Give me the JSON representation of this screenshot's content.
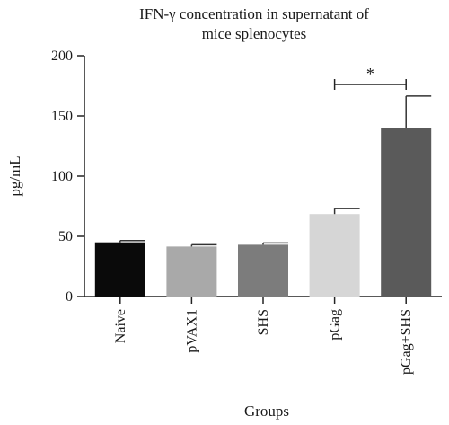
{
  "chart_data": {
    "type": "bar",
    "title": "IFN-γ concentration in supernatant of mice splenocytes",
    "title_lines": [
      "IFN-γ concentration in supernatant of",
      "mice splenocytes"
    ],
    "xlabel": "Groups",
    "ylabel": "pg/mL",
    "ylim": [
      0,
      200
    ],
    "yticks": [
      0,
      50,
      100,
      150,
      200
    ],
    "categories": [
      "Naive",
      "pVAX1",
      "SHS",
      "pGag",
      "pGag+SHS"
    ],
    "values": [
      45,
      41.5,
      43,
      68.5,
      140
    ],
    "errors": [
      1.5,
      1.5,
      1.5,
      4.5,
      26.5
    ],
    "colors": [
      "#0a0a0a",
      "#a9a9a9",
      "#7c7c7c",
      "#d6d6d6",
      "#5a5a5a"
    ],
    "significance": {
      "label": "*",
      "between": [
        "pGag",
        "pGag+SHS"
      ]
    },
    "grid": false,
    "legend": "none"
  }
}
